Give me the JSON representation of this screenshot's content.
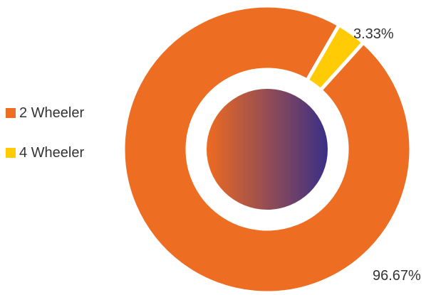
{
  "chart_data": {
    "type": "pie",
    "style": "donut",
    "categories": [
      "2 Wheeler",
      "4 Wheeler"
    ],
    "values": [
      96.67,
      3.33
    ],
    "data_labels": [
      "96.67%",
      "3.33%"
    ],
    "colors": [
      "#ED6D22",
      "#FFCB05"
    ],
    "center_gradient": [
      "#EE6B21",
      "#3A2F86"
    ],
    "legend_position": "left",
    "title": ""
  }
}
